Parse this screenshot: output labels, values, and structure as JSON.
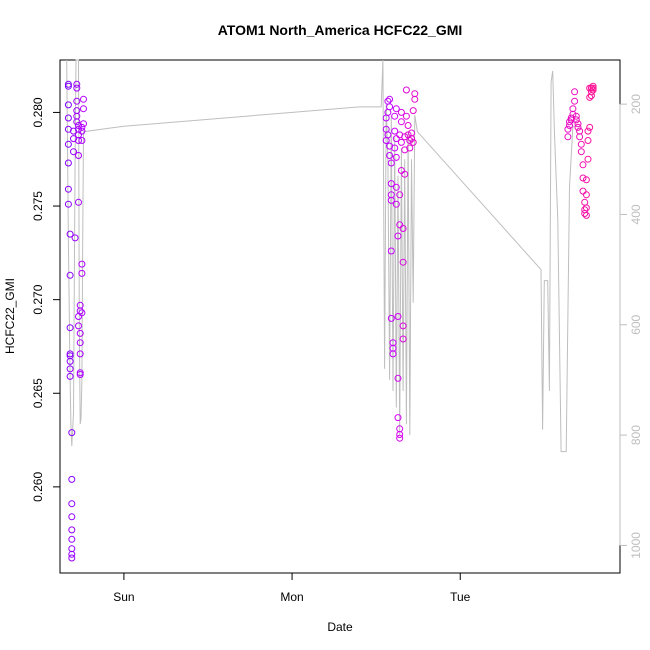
{
  "chart_data": {
    "type": "scatter",
    "title": "ATOM1 North_America HCFC22_GMI",
    "xlabel": "Date",
    "ylabel": "HCFC22_GMI",
    "x_ticks": [
      "Sun",
      "Mon",
      "Tue"
    ],
    "x_tick_values": [
      0.0,
      1.0,
      2.0
    ],
    "xlim": [
      -0.38,
      2.95
    ],
    "ylim": [
      0.2554,
      0.2828
    ],
    "y_ticks": [
      0.26,
      0.265,
      0.27,
      0.275,
      0.28
    ],
    "y_tick_labels": [
      "0.260",
      "0.265",
      "0.270",
      "0.275",
      "0.280"
    ],
    "secondary_axis": {
      "label": "",
      "ticks": [
        200,
        400,
        600,
        800,
        1000
      ],
      "tick_labels": [
        "200",
        "400",
        "600",
        "800",
        "1000"
      ],
      "range_top": 120,
      "range_bottom": 1050,
      "color": "#bebebe"
    },
    "grid": false,
    "legend": "none",
    "colors": {
      "start": "#7f00ff",
      "middle": "#cc00ff",
      "end": "#ff1493",
      "altitude_line": "#bebebe"
    },
    "series": [
      {
        "values": [
          [
            -0.33,
            0.2815
          ],
          [
            -0.33,
            0.2814
          ],
          [
            -0.33,
            0.2804
          ],
          [
            -0.33,
            0.2797
          ],
          [
            -0.33,
            0.2791
          ],
          [
            -0.33,
            0.2783
          ],
          [
            -0.33,
            0.2773
          ],
          [
            -0.33,
            0.2759
          ],
          [
            -0.33,
            0.2751
          ],
          [
            -0.32,
            0.2735
          ],
          [
            -0.32,
            0.2713
          ],
          [
            -0.32,
            0.2685
          ],
          [
            -0.32,
            0.2671
          ],
          [
            -0.32,
            0.267
          ],
          [
            -0.32,
            0.2667
          ],
          [
            -0.32,
            0.2663
          ],
          [
            -0.32,
            0.2659
          ],
          [
            -0.31,
            0.2629
          ],
          [
            -0.31,
            0.2604
          ],
          [
            -0.31,
            0.2591
          ],
          [
            -0.31,
            0.2584
          ],
          [
            -0.31,
            0.2577
          ],
          [
            -0.31,
            0.2572
          ],
          [
            -0.31,
            0.2567
          ],
          [
            -0.31,
            0.2564
          ],
          [
            -0.31,
            0.2562
          ],
          [
            -0.3,
            0.279
          ],
          [
            -0.3,
            0.2786
          ],
          [
            -0.3,
            0.2779
          ],
          [
            -0.29,
            0.2733
          ],
          [
            -0.28,
            0.2815
          ],
          [
            -0.28,
            0.2813
          ],
          [
            -0.28,
            0.2806
          ],
          [
            -0.28,
            0.2801
          ],
          [
            -0.28,
            0.2798
          ],
          [
            -0.28,
            0.2795
          ],
          [
            -0.27,
            0.2793
          ],
          [
            -0.27,
            0.2791
          ],
          [
            -0.27,
            0.2788
          ],
          [
            -0.27,
            0.2785
          ],
          [
            -0.27,
            0.2777
          ],
          [
            -0.27,
            0.2752
          ],
          [
            -0.27,
            0.2691
          ],
          [
            -0.27,
            0.2686
          ],
          [
            -0.26,
            0.2677
          ],
          [
            -0.26,
            0.2671
          ],
          [
            -0.26,
            0.2661
          ],
          [
            -0.26,
            0.266
          ],
          [
            -0.26,
            0.2682
          ],
          [
            -0.26,
            0.2694
          ],
          [
            -0.26,
            0.2697
          ],
          [
            -0.25,
            0.2714
          ],
          [
            -0.25,
            0.2719
          ],
          [
            -0.25,
            0.2693
          ],
          [
            -0.25,
            0.2785
          ],
          [
            -0.25,
            0.279
          ],
          [
            -0.24,
            0.2802
          ],
          [
            -0.24,
            0.2807
          ],
          [
            -0.24,
            0.2794
          ],
          [
            -0.25,
            0.2792
          ]
        ]
      },
      {
        "values": [
          [
            1.56,
            0.2785
          ],
          [
            1.56,
            0.2791
          ],
          [
            1.56,
            0.2797
          ],
          [
            1.57,
            0.28
          ],
          [
            1.57,
            0.2806
          ],
          [
            1.57,
            0.2788
          ],
          [
            1.58,
            0.2807
          ],
          [
            1.58,
            0.2803
          ],
          [
            1.58,
            0.2782
          ],
          [
            1.58,
            0.2777
          ],
          [
            1.59,
            0.2773
          ],
          [
            1.59,
            0.2762
          ],
          [
            1.59,
            0.2756
          ],
          [
            1.59,
            0.2753
          ],
          [
            1.59,
            0.2726
          ],
          [
            1.59,
            0.269
          ],
          [
            1.6,
            0.2677
          ],
          [
            1.6,
            0.2674
          ],
          [
            1.6,
            0.2671
          ],
          [
            1.61,
            0.2781
          ],
          [
            1.61,
            0.279
          ],
          [
            1.61,
            0.2798
          ],
          [
            1.62,
            0.2802
          ],
          [
            1.62,
            0.2786
          ],
          [
            1.62,
            0.2776
          ],
          [
            1.62,
            0.276
          ],
          [
            1.62,
            0.2751
          ],
          [
            1.63,
            0.2734
          ],
          [
            1.63,
            0.2691
          ],
          [
            1.63,
            0.2658
          ],
          [
            1.63,
            0.2637
          ],
          [
            1.64,
            0.2631
          ],
          [
            1.64,
            0.2628
          ],
          [
            1.64,
            0.2626
          ],
          [
            1.64,
            0.274
          ],
          [
            1.64,
            0.2756
          ],
          [
            1.64,
            0.2788
          ],
          [
            1.65,
            0.2795
          ],
          [
            1.65,
            0.28
          ],
          [
            1.65,
            0.2784
          ],
          [
            1.65,
            0.2769
          ],
          [
            1.66,
            0.2738
          ],
          [
            1.66,
            0.272
          ],
          [
            1.66,
            0.2686
          ],
          [
            1.66,
            0.2679
          ],
          [
            1.67,
            0.2767
          ],
          [
            1.67,
            0.278
          ],
          [
            1.67,
            0.2787
          ],
          [
            1.68,
            0.2812
          ],
          [
            1.68,
            0.2798
          ],
          [
            1.69,
            0.2793
          ],
          [
            1.69,
            0.2788
          ],
          [
            1.7,
            0.2781
          ],
          [
            1.7,
            0.2785
          ],
          [
            1.71,
            0.2789
          ],
          [
            1.71,
            0.2786
          ],
          [
            1.72,
            0.2784
          ],
          [
            1.72,
            0.2801
          ],
          [
            1.73,
            0.2807
          ],
          [
            1.73,
            0.281
          ]
        ]
      },
      {
        "values": [
          [
            2.64,
            0.2787
          ],
          [
            2.64,
            0.2791
          ],
          [
            2.65,
            0.2793
          ],
          [
            2.65,
            0.2795
          ],
          [
            2.66,
            0.2796
          ],
          [
            2.66,
            0.2797
          ],
          [
            2.67,
            0.2799
          ],
          [
            2.67,
            0.2802
          ],
          [
            2.68,
            0.2806
          ],
          [
            2.68,
            0.2811
          ],
          [
            2.69,
            0.2798
          ],
          [
            2.69,
            0.2796
          ],
          [
            2.7,
            0.2794
          ],
          [
            2.7,
            0.2792
          ],
          [
            2.71,
            0.279
          ],
          [
            2.71,
            0.2787
          ],
          [
            2.72,
            0.2783
          ],
          [
            2.72,
            0.2779
          ],
          [
            2.73,
            0.2772
          ],
          [
            2.73,
            0.2765
          ],
          [
            2.73,
            0.2758
          ],
          [
            2.74,
            0.2752
          ],
          [
            2.74,
            0.2748
          ],
          [
            2.74,
            0.2746
          ],
          [
            2.75,
            0.2745
          ],
          [
            2.75,
            0.2749
          ],
          [
            2.75,
            0.2756
          ],
          [
            2.75,
            0.2764
          ],
          [
            2.76,
            0.2775
          ],
          [
            2.76,
            0.2785
          ],
          [
            2.76,
            0.279
          ],
          [
            2.77,
            0.2792
          ],
          [
            2.77,
            0.2808
          ],
          [
            2.77,
            0.2813
          ],
          [
            2.78,
            0.2811
          ],
          [
            2.78,
            0.2809
          ],
          [
            2.78,
            0.2813
          ],
          [
            2.79,
            0.2814
          ],
          [
            2.79,
            0.2813
          ],
          [
            2.79,
            0.2812
          ]
        ]
      }
    ],
    "altitude_line": {
      "axis": "secondary",
      "points": [
        [
          -0.34,
          120
        ],
        [
          -0.33,
          450
        ],
        [
          -0.32,
          700
        ],
        [
          -0.315,
          780
        ],
        [
          -0.31,
          820
        ],
        [
          -0.3,
          760
        ],
        [
          -0.29,
          300
        ],
        [
          -0.285,
          120
        ],
        [
          -0.27,
          120
        ],
        [
          -0.265,
          600
        ],
        [
          -0.26,
          780
        ],
        [
          -0.255,
          770
        ],
        [
          -0.25,
          700
        ],
        [
          -0.245,
          450
        ],
        [
          -0.24,
          250
        ],
        [
          0.0,
          240
        ],
        [
          1.4,
          205
        ],
        [
          1.53,
          205
        ],
        [
          1.54,
          120
        ],
        [
          1.55,
          680
        ],
        [
          1.56,
          200
        ],
        [
          1.57,
          300
        ],
        [
          1.58,
          700
        ],
        [
          1.59,
          220
        ],
        [
          1.6,
          720
        ],
        [
          1.61,
          260
        ],
        [
          1.62,
          750
        ],
        [
          1.63,
          330
        ],
        [
          1.64,
          800
        ],
        [
          1.65,
          280
        ],
        [
          1.66,
          720
        ],
        [
          1.67,
          300
        ],
        [
          1.68,
          780
        ],
        [
          1.69,
          250
        ],
        [
          1.7,
          800
        ],
        [
          1.71,
          300
        ],
        [
          1.72,
          560
        ],
        [
          1.73,
          220
        ],
        [
          1.745,
          250
        ],
        [
          2.48,
          500
        ],
        [
          2.49,
          790
        ],
        [
          2.5,
          520
        ],
        [
          2.52,
          520
        ],
        [
          2.53,
          720
        ],
        [
          2.54,
          160
        ],
        [
          2.55,
          140
        ],
        [
          2.56,
          250
        ],
        [
          2.58,
          410
        ],
        [
          2.6,
          830
        ],
        [
          2.63,
          830
        ],
        [
          2.65,
          350
        ],
        [
          2.67,
          240
        ],
        [
          2.69,
          240
        ]
      ]
    }
  }
}
